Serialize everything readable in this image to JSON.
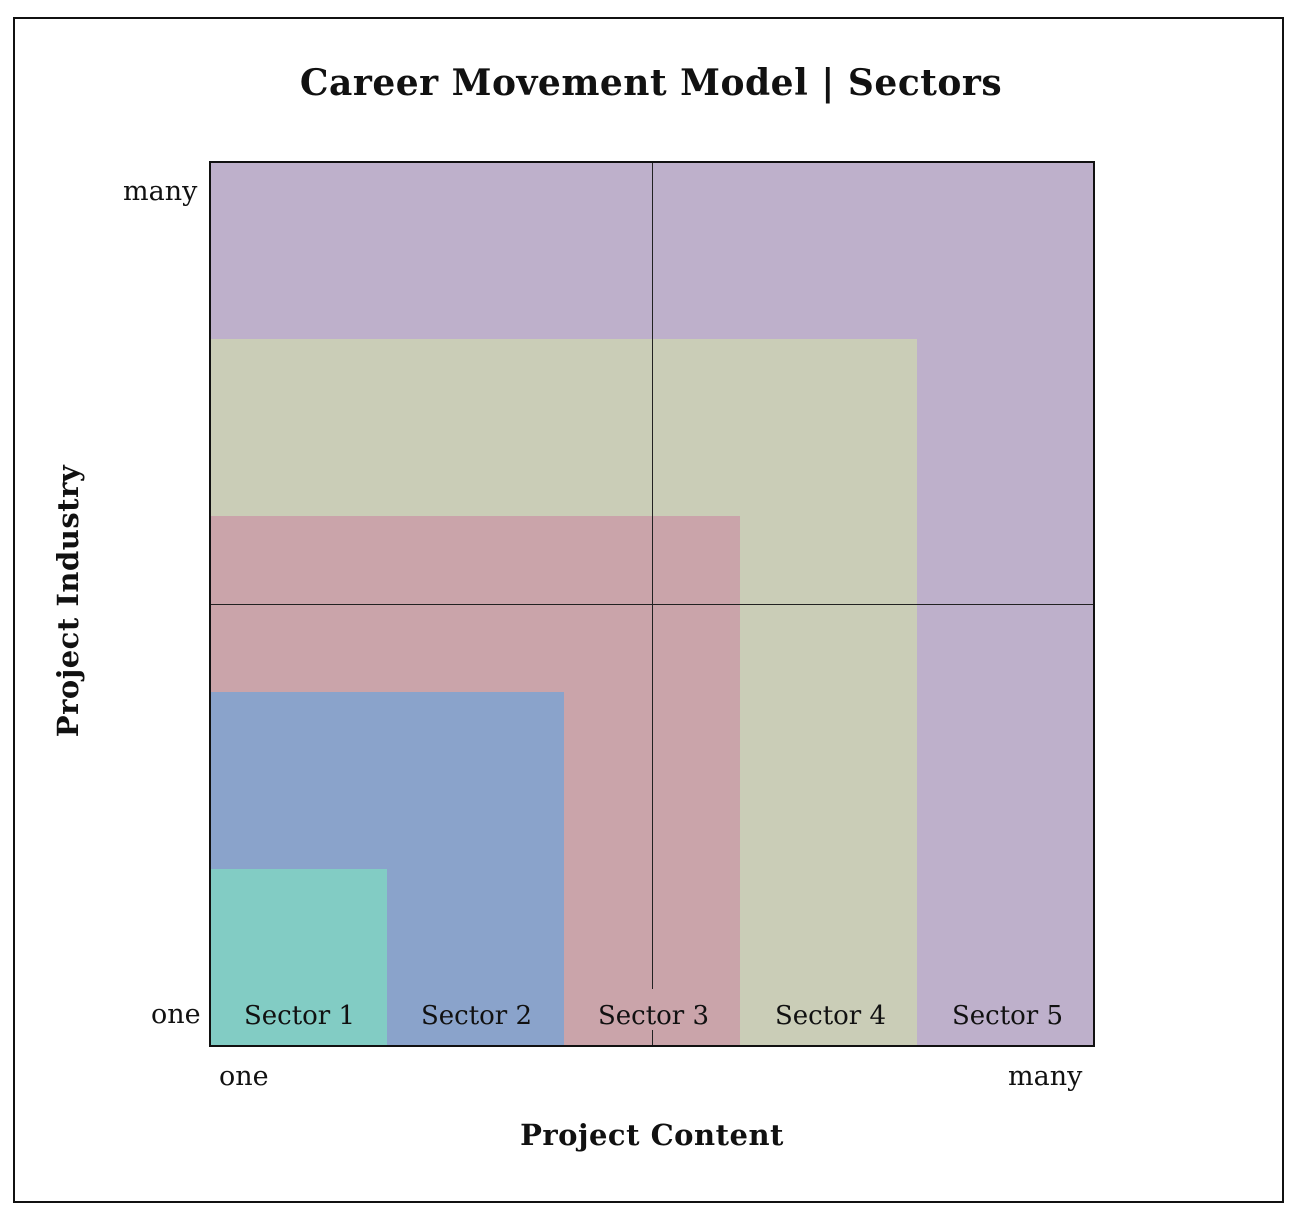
{
  "title": "Career Movement Model | Sectors",
  "axes": {
    "xlabel": "Project Content",
    "ylabel": "Project Industry",
    "x_ticks": [
      "one",
      "many"
    ],
    "y_ticks": [
      "many",
      "one"
    ]
  },
  "sectors": [
    {
      "label": "Sector 1",
      "extent": 0.2,
      "color": "#82ccc4"
    },
    {
      "label": "Sector 2",
      "extent": 0.4,
      "color": "#8aa3cb"
    },
    {
      "label": "Sector 3",
      "extent": 0.6,
      "color": "#caa4aa"
    },
    {
      "label": "Sector 4",
      "extent": 0.8,
      "color": "#cacdb7"
    },
    {
      "label": "Sector 5",
      "extent": 1.0,
      "color": "#beb0cb"
    }
  ]
}
